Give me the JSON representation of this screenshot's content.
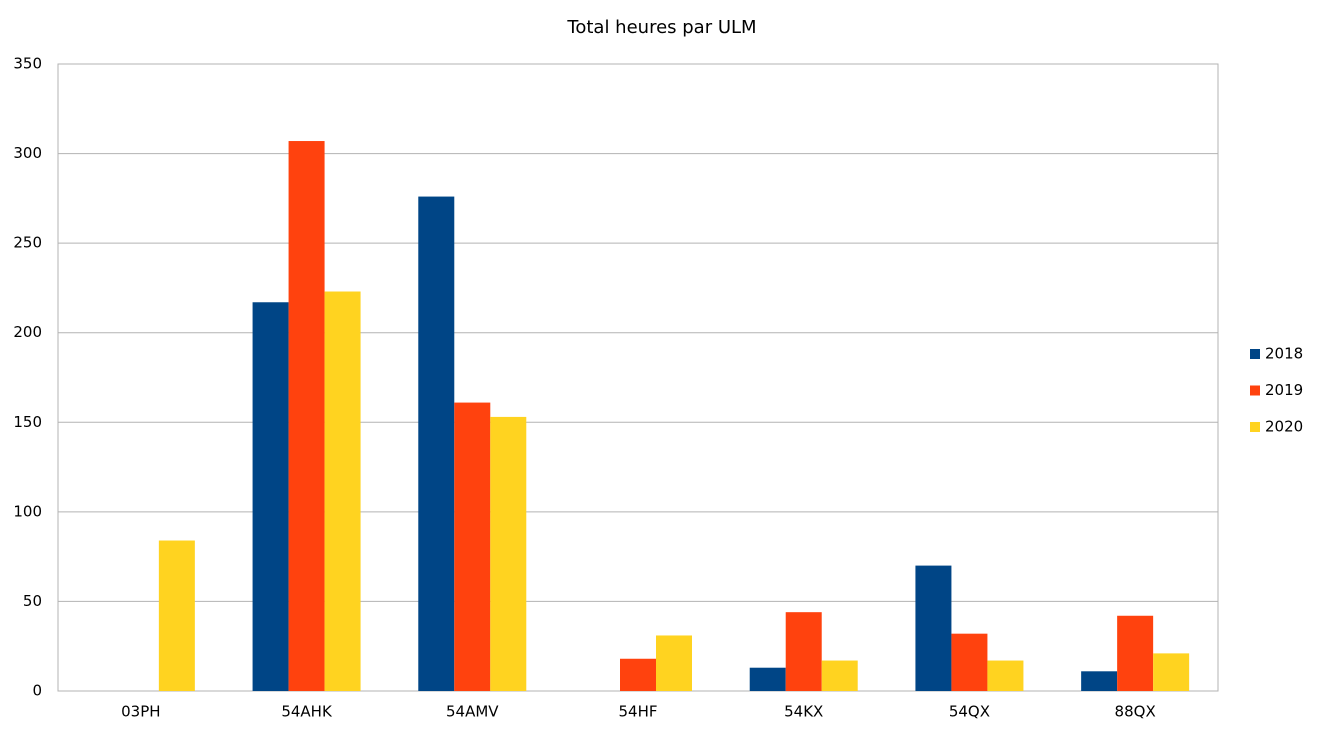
{
  "chart_data": {
    "type": "bar",
    "title": "Total heures par ULM",
    "categories": [
      "03PH",
      "54AHK",
      "54AMV",
      "54HF",
      "54KX",
      "54QX",
      "88QX"
    ],
    "series": [
      {
        "name": "2018",
        "color": "#004586",
        "values": [
          null,
          217,
          276,
          null,
          13,
          70,
          11
        ]
      },
      {
        "name": "2019",
        "color": "#ff420e",
        "values": [
          null,
          307,
          161,
          18,
          44,
          32,
          42
        ]
      },
      {
        "name": "2020",
        "color": "#ffd320",
        "values": [
          84,
          223,
          153,
          31,
          17,
          17,
          21
        ]
      }
    ],
    "ylim": [
      0,
      350
    ],
    "yticks": [
      0,
      50,
      100,
      150,
      200,
      250,
      300,
      350
    ],
    "grid": true,
    "legend": "right"
  }
}
